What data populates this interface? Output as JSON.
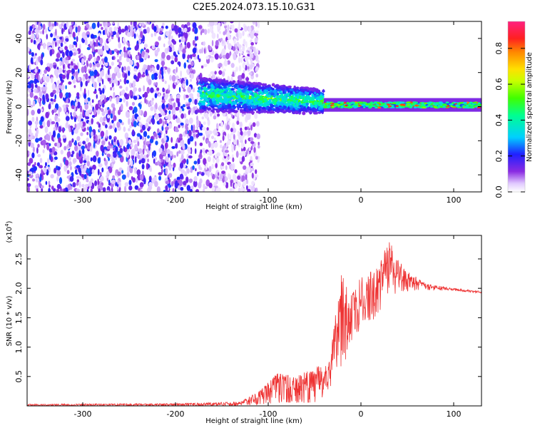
{
  "title": "C2E5.2024.073.15.10.G31",
  "chart_data": [
    {
      "type": "heatmap",
      "xlabel": "Height of straight line (km)",
      "ylabel": "Frequency (Hz)",
      "xlim": [
        -360,
        130
      ],
      "ylim": [
        -50,
        50
      ],
      "xticks": [
        -300,
        -200,
        -100,
        0,
        100
      ],
      "yticks": [
        -40,
        -20,
        0,
        20,
        40
      ],
      "colorbar": {
        "label": "Normalized spectral amplitude",
        "range": [
          0.0,
          0.95
        ],
        "ticks": [
          "0.0",
          "0.2",
          "0.4",
          "0.6",
          "0.8"
        ],
        "colormap": "rainbow (white-violet-blue-cyan-green-yellow-orange-red-magenta)"
      },
      "regions": [
        {
          "x_range": [
            -360,
            -135
          ],
          "freq_range": [
            -50,
            50
          ],
          "amplitude": "low (0.05-0.2), scattered noise"
        },
        {
          "x_range": [
            -175,
            -40
          ],
          "freq_center": 4,
          "freq_halfwidth": 10,
          "amplitude": "0.2-0.55, concentrated band"
        },
        {
          "x_range": [
            -40,
            130
          ],
          "freq_center": 1,
          "freq_halfwidth": 3,
          "amplitude": "0.3-0.9, narrow band"
        }
      ],
      "grid": false
    },
    {
      "type": "line",
      "xlabel": "Height of straight line (km)",
      "ylabel": "SNR (10 * v/v)",
      "multiplier": "(x10^4)",
      "multiplier_text": "(x10",
      "multiplier_exp": "4",
      "xlim": [
        -360,
        130
      ],
      "ylim": [
        0,
        2.9
      ],
      "xticks": [
        -300,
        -200,
        -100,
        0,
        100
      ],
      "yticks": [
        0.5,
        1.0,
        1.5,
        2.0,
        2.5
      ],
      "ytick_labels": [
        "0.5",
        "1.0",
        "1.5",
        "2.0",
        "2.5"
      ],
      "color": "#ee3333",
      "grid": false,
      "series_envelope": [
        {
          "x": -360,
          "low": 0.0,
          "high": 0.03
        },
        {
          "x": -200,
          "low": 0.0,
          "high": 0.04
        },
        {
          "x": -130,
          "low": 0.0,
          "high": 0.07
        },
        {
          "x": -110,
          "low": 0.02,
          "high": 0.25
        },
        {
          "x": -90,
          "low": 0.05,
          "high": 0.55
        },
        {
          "x": -70,
          "low": 0.05,
          "high": 0.5
        },
        {
          "x": -50,
          "low": 0.06,
          "high": 0.65
        },
        {
          "x": -35,
          "low": 0.15,
          "high": 0.7
        },
        {
          "x": -30,
          "low": 0.3,
          "high": 1.3
        },
        {
          "x": -20,
          "low": 0.7,
          "high": 2.35
        },
        {
          "x": -10,
          "low": 0.9,
          "high": 1.9
        },
        {
          "x": 0,
          "low": 1.3,
          "high": 2.2
        },
        {
          "x": 10,
          "low": 1.4,
          "high": 2.3
        },
        {
          "x": 20,
          "low": 1.6,
          "high": 2.4
        },
        {
          "x": 30,
          "low": 1.9,
          "high": 2.85
        },
        {
          "x": 40,
          "low": 1.9,
          "high": 2.5
        },
        {
          "x": 55,
          "low": 1.95,
          "high": 2.25
        },
        {
          "x": 70,
          "low": 1.97,
          "high": 2.08
        },
        {
          "x": 100,
          "low": 1.95,
          "high": 2.0
        },
        {
          "x": 130,
          "low": 1.91,
          "high": 1.95
        }
      ]
    }
  ]
}
